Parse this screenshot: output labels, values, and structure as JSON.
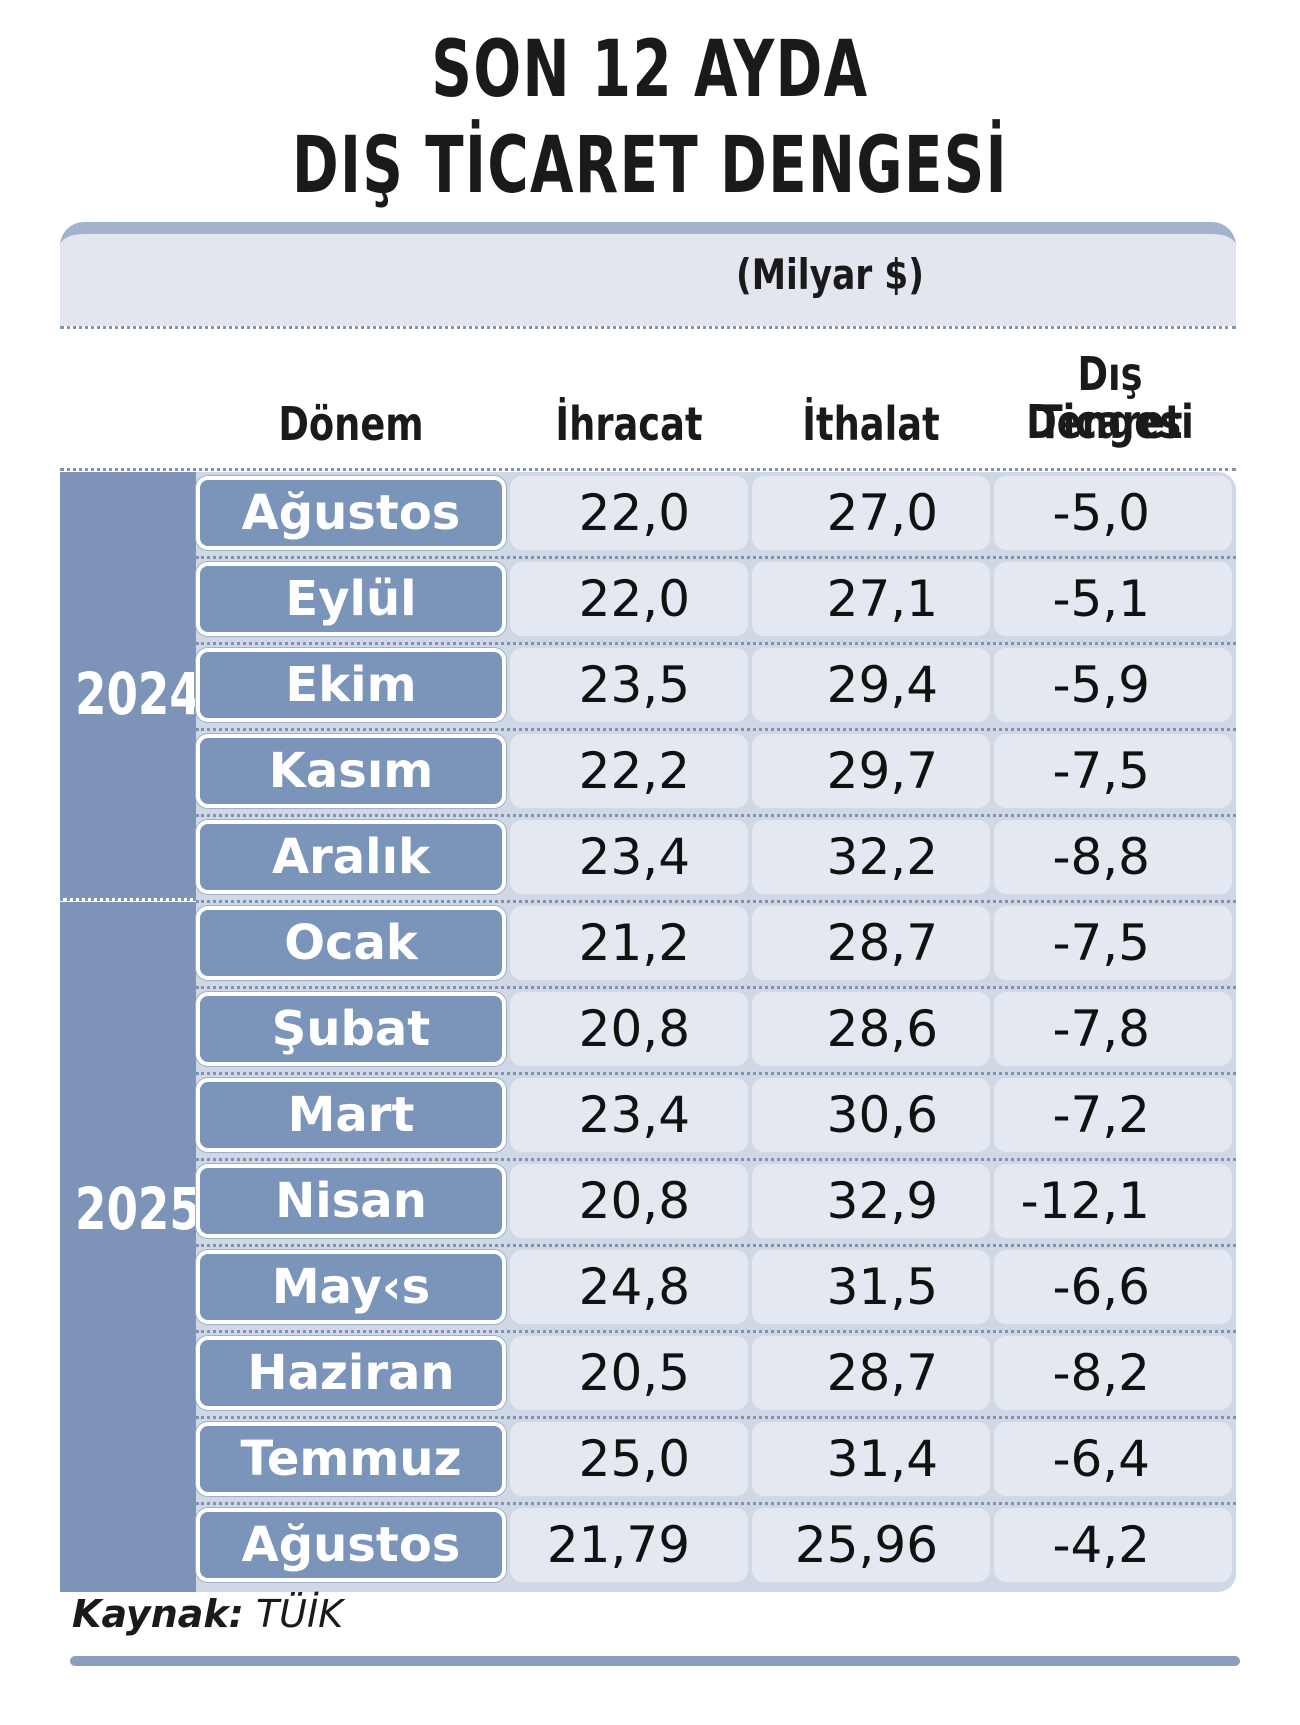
{
  "title_line1": "SON 12 AYDA",
  "title_line2": "DIŞ TİCARET DENGESİ",
  "unit": "(Milyar $)",
  "headers": {
    "period": "Dönem",
    "exports": "İhracat",
    "imports": "İthalat",
    "balance_line1": "Dış Ticaret",
    "balance_line2": "Dengesi"
  },
  "years": [
    "2024",
    "2025"
  ],
  "source_label": "Kaynak:",
  "source_value": "TÜİK",
  "colors": {
    "year_band": "#7d94b8",
    "month_cell": "#7b94b9",
    "value_cell": "#e4e8f0"
  },
  "chart_data": {
    "type": "table",
    "columns": [
      "Dönem",
      "İhracat",
      "İthalat",
      "Dış Ticaret Dengesi"
    ],
    "rows": [
      {
        "year": "2024",
        "month": "Ağustos",
        "exports": "22,0",
        "imports": "27,0",
        "balance": "-5,0"
      },
      {
        "year": "2024",
        "month": "Eylül",
        "exports": "22,0",
        "imports": "27,1",
        "balance": "-5,1"
      },
      {
        "year": "2024",
        "month": "Ekim",
        "exports": "23,5",
        "imports": "29,4",
        "balance": "-5,9"
      },
      {
        "year": "2024",
        "month": "Kasım",
        "exports": "22,2",
        "imports": "29,7",
        "balance": "-7,5"
      },
      {
        "year": "2024",
        "month": "Aralık",
        "exports": "23,4",
        "imports": "32,2",
        "balance": "-8,8"
      },
      {
        "year": "2025",
        "month": "Ocak",
        "exports": "21,2",
        "imports": "28,7",
        "balance": "-7,5"
      },
      {
        "year": "2025",
        "month": "Şubat",
        "exports": "20,8",
        "imports": "28,6",
        "balance": "-7,8"
      },
      {
        "year": "2025",
        "month": "Mart",
        "exports": "23,4",
        "imports": "30,6",
        "balance": "-7,2"
      },
      {
        "year": "2025",
        "month": "Nisan",
        "exports": "20,8",
        "imports": "32,9",
        "balance": "-12,1"
      },
      {
        "year": "2025",
        "month": "May‹s",
        "exports": "24,8",
        "imports": "31,5",
        "balance": "-6,6"
      },
      {
        "year": "2025",
        "month": "Haziran",
        "exports": "20,5",
        "imports": "28,7",
        "balance": "-8,2"
      },
      {
        "year": "2025",
        "month": "Temmuz",
        "exports": "25,0",
        "imports": "31,4",
        "balance": "-6,4"
      },
      {
        "year": "2025",
        "month": "Ağustos",
        "exports": "21,79",
        "imports": "25,96",
        "balance": "-4,2"
      }
    ]
  }
}
